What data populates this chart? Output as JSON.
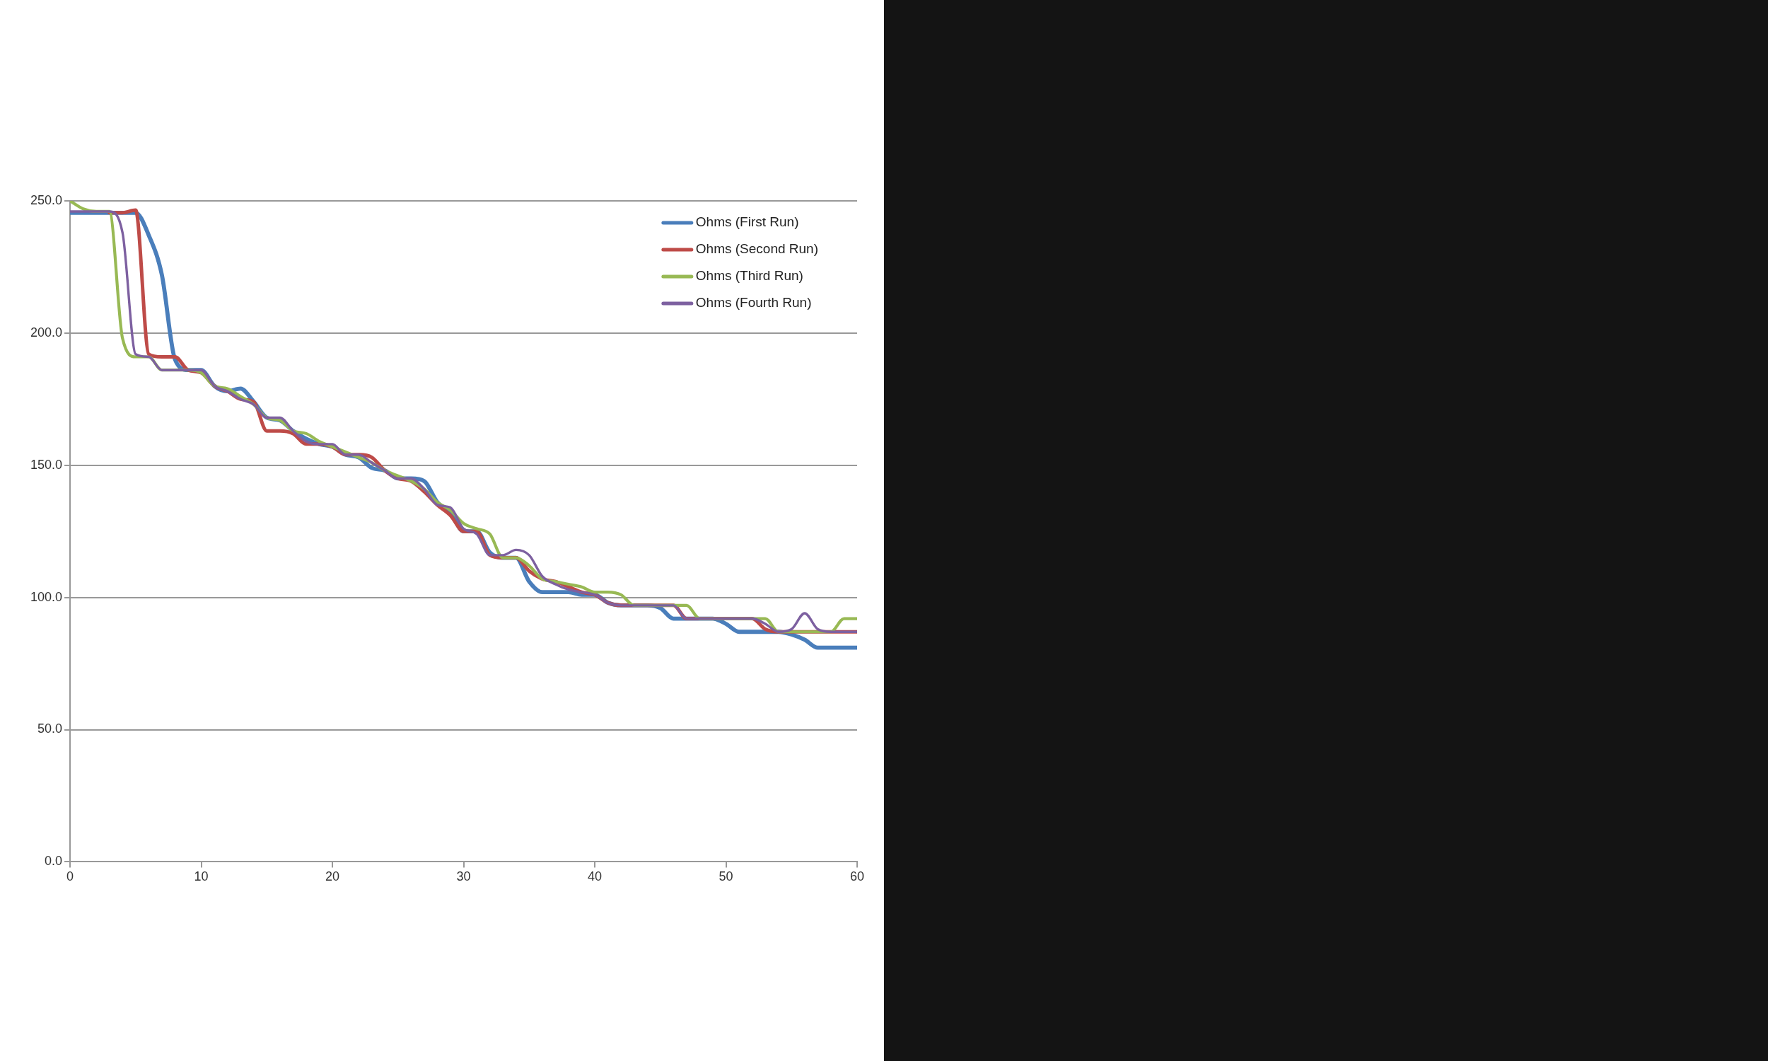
{
  "chart_data": {
    "type": "line",
    "x": [
      0,
      1,
      2,
      3,
      4,
      5,
      6,
      7,
      8,
      9,
      10,
      11,
      12,
      13,
      14,
      15,
      16,
      17,
      18,
      19,
      20,
      21,
      22,
      23,
      24,
      25,
      26,
      27,
      28,
      29,
      30,
      31,
      32,
      33,
      34,
      35,
      36,
      37,
      38,
      39,
      40,
      41,
      42,
      43,
      44,
      45,
      46,
      47,
      48,
      49,
      50,
      51,
      52,
      53,
      54,
      55,
      56,
      57,
      58,
      59,
      60
    ],
    "series": [
      {
        "name": "Ohms (First Run)",
        "color": "#4a7ebb",
        "values": [
          245.5,
          245.5,
          245.5,
          245.5,
          245.5,
          245.5,
          237,
          222,
          190,
          186,
          186,
          180,
          178,
          179,
          174,
          168,
          167,
          163,
          160,
          158,
          157,
          154,
          153,
          149,
          148,
          145,
          145,
          144,
          136,
          132,
          125,
          125,
          117,
          115,
          115,
          106,
          102,
          102,
          102,
          101,
          101,
          98,
          97,
          97,
          97,
          96,
          92,
          92,
          92,
          92,
          90,
          87,
          87,
          87,
          87,
          86,
          84,
          81,
          81,
          81,
          81
        ]
      },
      {
        "name": "Ohms (Second Run)",
        "color": "#be4b48",
        "values": [
          null,
          null,
          null,
          245.5,
          245.5,
          246.5,
          192,
          191,
          191,
          186,
          185,
          180,
          178,
          175,
          174,
          163,
          163,
          162,
          158,
          158,
          157,
          154,
          154,
          153,
          148,
          145,
          144,
          140,
          135,
          131,
          125,
          125,
          116,
          115,
          115,
          110,
          107,
          106,
          104,
          102,
          101,
          98,
          97,
          97,
          97,
          97,
          97,
          92,
          92,
          92,
          92,
          92,
          92,
          88,
          87,
          87,
          87,
          87,
          87,
          87,
          87
        ]
      },
      {
        "name": "Ohms (Third Run)",
        "color": "#98b954",
        "values": [
          250,
          247,
          246,
          246,
          198,
          191,
          191,
          186,
          186,
          186,
          185,
          180,
          179,
          176,
          173,
          168,
          167,
          163,
          162,
          159,
          157,
          155,
          153,
          151,
          148,
          146,
          144,
          141,
          136,
          133,
          128,
          126,
          124,
          115,
          115,
          112,
          107,
          106,
          105,
          104,
          102,
          102,
          101,
          97,
          97,
          97,
          97,
          97,
          92,
          92,
          92,
          92,
          92,
          92,
          87,
          87,
          87,
          87,
          87,
          92,
          92
        ]
      },
      {
        "name": "Ohms (Fourth Run)",
        "color": "#7d60a0",
        "values": [
          246,
          246,
          246,
          246,
          238,
          192,
          191,
          186,
          186,
          186,
          186,
          180,
          178,
          175,
          173,
          168,
          168,
          163,
          159,
          158,
          158,
          154,
          154,
          151,
          148,
          145,
          145,
          141,
          135,
          134,
          126,
          124,
          116,
          116,
          118,
          116,
          108,
          105,
          103,
          102,
          101,
          98,
          97,
          97,
          97,
          97,
          97,
          92,
          92,
          92,
          92,
          92,
          92,
          90,
          87,
          88,
          94,
          88,
          87,
          87,
          87
        ]
      }
    ],
    "xlim": [
      0,
      60
    ],
    "xticks": [
      0,
      10,
      20,
      30,
      40,
      50,
      60
    ],
    "ylim": [
      0,
      250
    ],
    "yticks": [
      {
        "value": 0,
        "label": "0.0"
      },
      {
        "value": 50,
        "label": "50.0"
      },
      {
        "value": 100,
        "label": "100.0"
      },
      {
        "value": 150,
        "label": "150.0"
      },
      {
        "value": 200,
        "label": "200.0"
      },
      {
        "value": 250,
        "label": "250.0"
      }
    ],
    "grid": "y",
    "legend": "top right",
    "marker": "none",
    "line_style": "solid"
  }
}
